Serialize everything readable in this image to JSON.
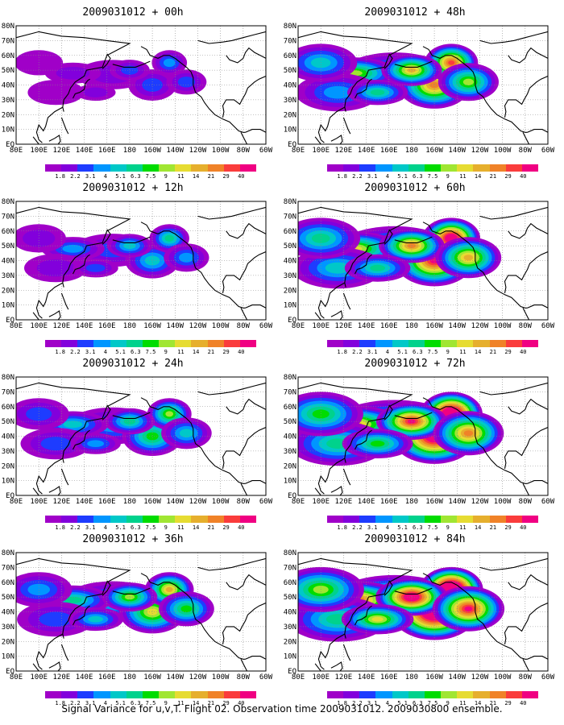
{
  "panels": [
    {
      "title": "2009031012 + 00h",
      "intensity": 0.35
    },
    {
      "title": "2009031012 + 48h",
      "intensity": 1.15
    },
    {
      "title": "2009031012 + 12h",
      "intensity": 0.55
    },
    {
      "title": "2009031012 + 60h",
      "intensity": 1.35
    },
    {
      "title": "2009031012 + 24h",
      "intensity": 0.75
    },
    {
      "title": "2009031012 + 72h",
      "intensity": 1.55
    },
    {
      "title": "2009031012 + 36h",
      "intensity": 0.95
    },
    {
      "title": "2009031012 + 84h",
      "intensity": 1.8
    }
  ],
  "lat_labels": [
    "80N",
    "70N",
    "60N",
    "50N",
    "40N",
    "30N",
    "20N",
    "10N",
    "EQ"
  ],
  "lon_labels": [
    "80E",
    "100E",
    "120E",
    "140E",
    "160E",
    "180",
    "160W",
    "140W",
    "120W",
    "100W",
    "80W",
    "60W"
  ],
  "legend": {
    "ticks": [
      "1.8",
      "2.2",
      "3.1",
      "4",
      "5.1",
      "6.3",
      "7.5",
      "9",
      "11",
      "14",
      "21",
      "29",
      "40"
    ],
    "colors": [
      "#a000c8",
      "#8200dc",
      "#1e3cff",
      "#0096ff",
      "#00c8c8",
      "#00d28c",
      "#00dc00",
      "#a0e632",
      "#e6dc32",
      "#e6af2d",
      "#f08228",
      "#fa3c3c",
      "#f00082"
    ]
  },
  "footer": "Signal Variance for u,v,T. Flight 02. Observation time 2009031012. 2009030800 ensemble."
}
